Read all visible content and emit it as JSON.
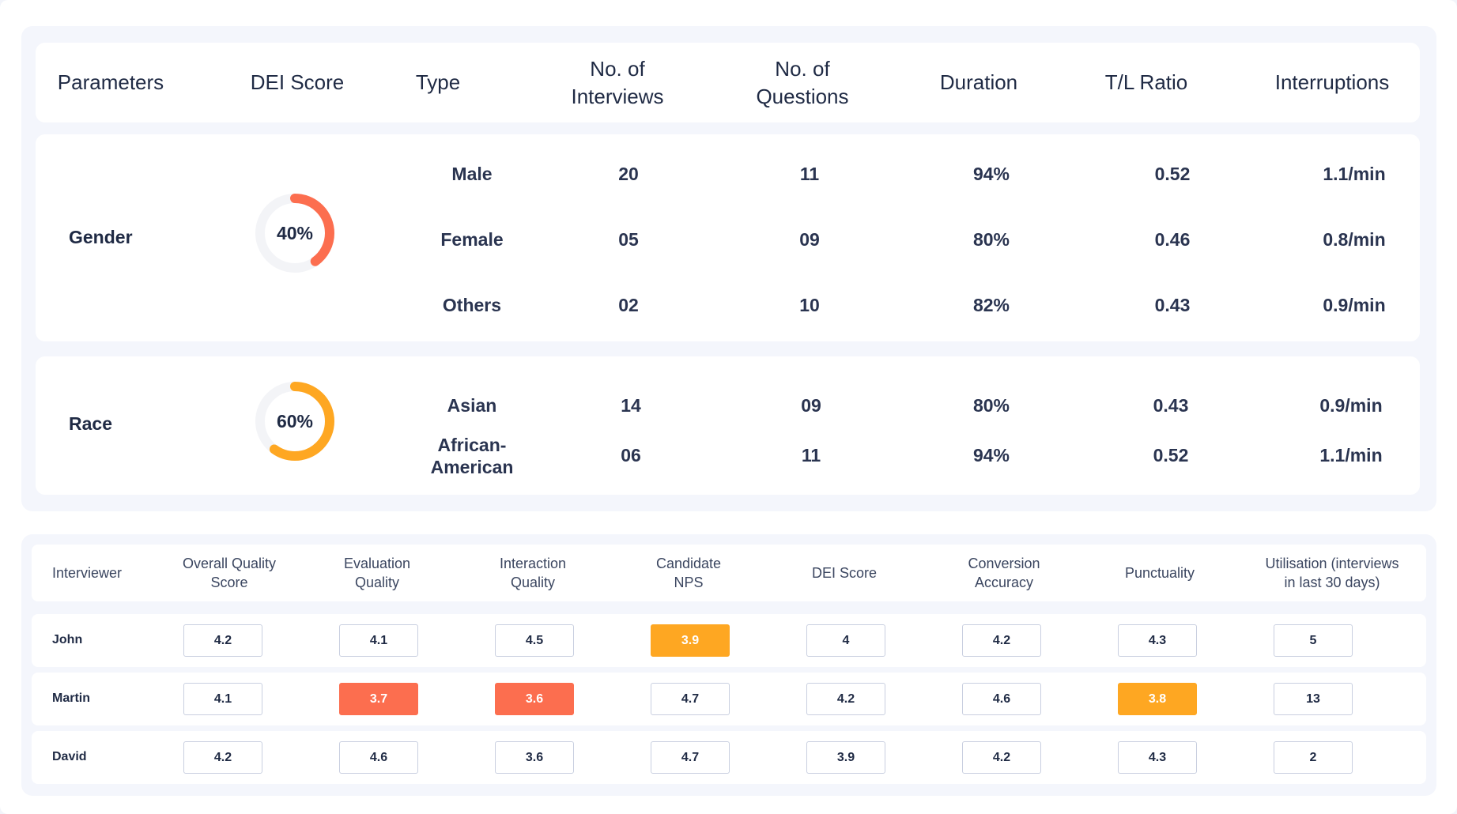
{
  "dei_table": {
    "headers": [
      "Parameters",
      "DEI Score",
      "Type",
      "No. of\nInterviews",
      "No. of\nQuestions",
      "Duration",
      "T/L Ratio",
      "Interruptions"
    ],
    "groups": [
      {
        "label": "Gender",
        "score": "40%",
        "score_fraction": 0.4,
        "score_color": "#fc6e4f",
        "rows": [
          {
            "type": "Male",
            "interviews": "20",
            "questions": "11",
            "duration": "94%",
            "tl_ratio": "0.52",
            "interruptions": "1.1/min"
          },
          {
            "type": "Female",
            "interviews": "05",
            "questions": "09",
            "duration": "80%",
            "tl_ratio": "0.46",
            "interruptions": "0.8/min"
          },
          {
            "type": "Others",
            "interviews": "02",
            "questions": "10",
            "duration": "82%",
            "tl_ratio": "0.43",
            "interruptions": "0.9/min"
          }
        ]
      },
      {
        "label": "Race",
        "score": "60%",
        "score_fraction": 0.6,
        "score_color": "#fea722",
        "rows": [
          {
            "type": "Asian",
            "interviews": "14",
            "questions": "09",
            "duration": "80%",
            "tl_ratio": "0.43",
            "interruptions": "0.9/min"
          },
          {
            "type": "African-\nAmerican",
            "interviews": "06",
            "questions": "11",
            "duration": "94%",
            "tl_ratio": "0.52",
            "interruptions": "1.1/min"
          }
        ]
      }
    ]
  },
  "interviewer_table": {
    "headers": [
      "Interviewer",
      "Overall Quality\nScore",
      "Evaluation\nQuality",
      "Interaction\nQuality",
      "Candidate\nNPS",
      "DEI Score",
      "Conversion\nAccuracy",
      "Punctuality",
      "Utilisation (interviews\nin last 30 days)"
    ],
    "rows": [
      {
        "name": "John",
        "values": [
          "4.2",
          "4.1",
          "4.5",
          "3.9",
          "4",
          "4.2",
          "4.3",
          "5"
        ],
        "flags": [
          "",
          "",
          "",
          "orange",
          "",
          "",
          "",
          ""
        ]
      },
      {
        "name": "Martin",
        "values": [
          "4.1",
          "3.7",
          "3.6",
          "4.7",
          "4.2",
          "4.6",
          "3.8",
          "13"
        ],
        "flags": [
          "",
          "red",
          "red",
          "",
          "",
          "",
          "orange",
          ""
        ]
      },
      {
        "name": "David",
        "values": [
          "4.2",
          "4.6",
          "3.6",
          "4.7",
          "3.9",
          "4.2",
          "4.3",
          "2"
        ],
        "flags": [
          "",
          "",
          "",
          "",
          "",
          "",
          "",
          ""
        ]
      }
    ]
  },
  "colors": {
    "panel_bg": "#f4f6fc",
    "flag_red": "#fc6e4f",
    "flag_orange": "#fea722",
    "donut_track": "#f3f4f7"
  }
}
